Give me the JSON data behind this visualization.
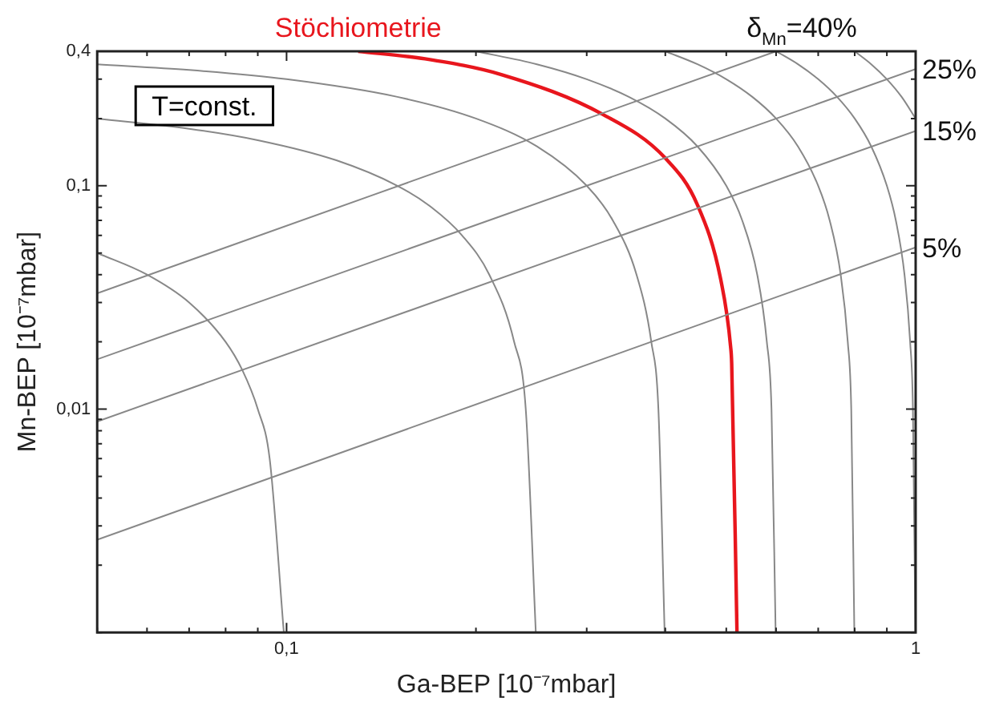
{
  "chart_data": {
    "type": "line",
    "xlabel": "Ga-BEP [10⁻⁷mbar]",
    "ylabel": "Mn-BEP [10⁻⁷mbar]",
    "log": "xy",
    "legend": false,
    "marker": "none",
    "line_style": "solid",
    "xlim": [
      0.05,
      1
    ],
    "ylim": [
      0.001,
      0.4
    ],
    "xticks": [
      {
        "value": 0.05,
        "label": null
      },
      {
        "value": 0.06,
        "label": null
      },
      {
        "value": 0.07,
        "label": null
      },
      {
        "value": 0.08,
        "label": null
      },
      {
        "value": 0.09,
        "label": null
      },
      {
        "value": 0.1,
        "label": "0,1"
      },
      {
        "value": 0.2,
        "label": null
      },
      {
        "value": 0.3,
        "label": null
      },
      {
        "value": 0.4,
        "label": null
      },
      {
        "value": 0.5,
        "label": null
      },
      {
        "value": 0.6,
        "label": null
      },
      {
        "value": 0.7,
        "label": null
      },
      {
        "value": 0.8,
        "label": null
      },
      {
        "value": 0.9,
        "label": null
      },
      {
        "value": 1,
        "label": "1"
      }
    ],
    "yticks": [
      {
        "value": 0.001,
        "label": null
      },
      {
        "value": 0.002,
        "label": null
      },
      {
        "value": 0.003,
        "label": null
      },
      {
        "value": 0.004,
        "label": null
      },
      {
        "value": 0.005,
        "label": null
      },
      {
        "value": 0.006,
        "label": null
      },
      {
        "value": 0.007,
        "label": null
      },
      {
        "value": 0.008,
        "label": null
      },
      {
        "value": 0.009,
        "label": null
      },
      {
        "value": 0.01,
        "label": "0,01"
      },
      {
        "value": 0.02,
        "label": null
      },
      {
        "value": 0.03,
        "label": null
      },
      {
        "value": 0.04,
        "label": null
      },
      {
        "value": 0.05,
        "label": null
      },
      {
        "value": 0.06,
        "label": null
      },
      {
        "value": 0.07,
        "label": null
      },
      {
        "value": 0.08,
        "label": null
      },
      {
        "value": 0.09,
        "label": null
      },
      {
        "value": 0.1,
        "label": "0,1"
      },
      {
        "value": 0.2,
        "label": null
      },
      {
        "value": 0.3,
        "label": null
      },
      {
        "value": 0.4,
        "label": "0,4"
      }
    ],
    "annotations": [
      "T=const."
    ],
    "series": [
      {
        "color": "#888888",
        "x": [
          0.099,
          0.094,
          0.09,
          0.085,
          0.08,
          0.07,
          0.06,
          0.05
        ],
        "values": [
          0.001,
          0.006,
          0.01,
          0.015,
          0.02,
          0.03,
          0.04,
          0.05
        ]
      },
      {
        "color": "#888888",
        "x": [
          0.249,
          0.24,
          0.23,
          0.21,
          0.19,
          0.17,
          0.15,
          0.12,
          0.09,
          0.07,
          0.05
        ],
        "values": [
          0.001,
          0.01,
          0.02,
          0.04,
          0.06,
          0.08,
          0.1,
          0.13,
          0.16,
          0.18,
          0.2
        ]
      },
      {
        "color": "#888888",
        "x": [
          0.399,
          0.39,
          0.38,
          0.36,
          0.33,
          0.3,
          0.25,
          0.2,
          0.15,
          0.1,
          0.07,
          0.05
        ],
        "values": [
          0.001,
          0.01,
          0.02,
          0.04,
          0.07,
          0.1,
          0.15,
          0.2,
          0.25,
          0.3,
          0.33,
          0.35
        ]
      },
      {
        "color": "#888888",
        "x": [
          0.599,
          0.59,
          0.58,
          0.56,
          0.53,
          0.5,
          0.45,
          0.4,
          0.35,
          0.3,
          0.25,
          0.2
        ],
        "values": [
          0.001,
          0.01,
          0.02,
          0.04,
          0.07,
          0.1,
          0.15,
          0.2,
          0.25,
          0.3,
          0.35,
          0.4
        ]
      },
      {
        "color": "#888888",
        "x": [
          0.799,
          0.79,
          0.78,
          0.76,
          0.73,
          0.7,
          0.65,
          0.6,
          0.55,
          0.5,
          0.45,
          0.4
        ],
        "values": [
          0.001,
          0.01,
          0.02,
          0.04,
          0.07,
          0.1,
          0.15,
          0.2,
          0.25,
          0.3,
          0.35,
          0.4
        ]
      },
      {
        "color": "#888888",
        "x": [
          0.999,
          0.99,
          0.98,
          0.96,
          0.93,
          0.9,
          0.85,
          0.8,
          0.75,
          0.7,
          0.65,
          0.6
        ],
        "values": [
          0.001,
          0.01,
          0.02,
          0.04,
          0.07,
          0.1,
          0.15,
          0.2,
          0.25,
          0.3,
          0.35,
          0.4
        ]
      },
      {
        "color": "#888888",
        "x": [
          1,
          0.95,
          0.9,
          0.85,
          0.8
        ],
        "values": [
          0.2,
          0.25,
          0.3,
          0.35,
          0.4
        ]
      },
      {
        "color": "#888888",
        "name": "5%",
        "x": [
          0.05,
          1
        ],
        "values": [
          0.0026,
          0.053
        ]
      },
      {
        "color": "#888888",
        "name": "15%",
        "x": [
          0.05,
          1
        ],
        "values": [
          0.0088,
          0.176
        ]
      },
      {
        "color": "#888888",
        "name": "25%",
        "x": [
          0.05,
          1
        ],
        "values": [
          0.0167,
          0.333
        ]
      },
      {
        "color": "#888888",
        "name": "δ$_{Mn}$=40%",
        "x": [
          0.05,
          0.6
        ],
        "values": [
          0.033,
          0.4
        ]
      },
      {
        "color": "#e8161d",
        "name": "Stöchiometrie",
        "x": [
          0.52,
          0.51,
          0.508,
          0.49,
          0.45,
          0.4,
          0.318,
          0.22,
          0.166,
          0.13
        ],
        "values": [
          0.001,
          0.016,
          0.019,
          0.038,
          0.082,
          0.133,
          0.209,
          0.314,
          0.37,
          0.4
        ]
      }
    ]
  }
}
